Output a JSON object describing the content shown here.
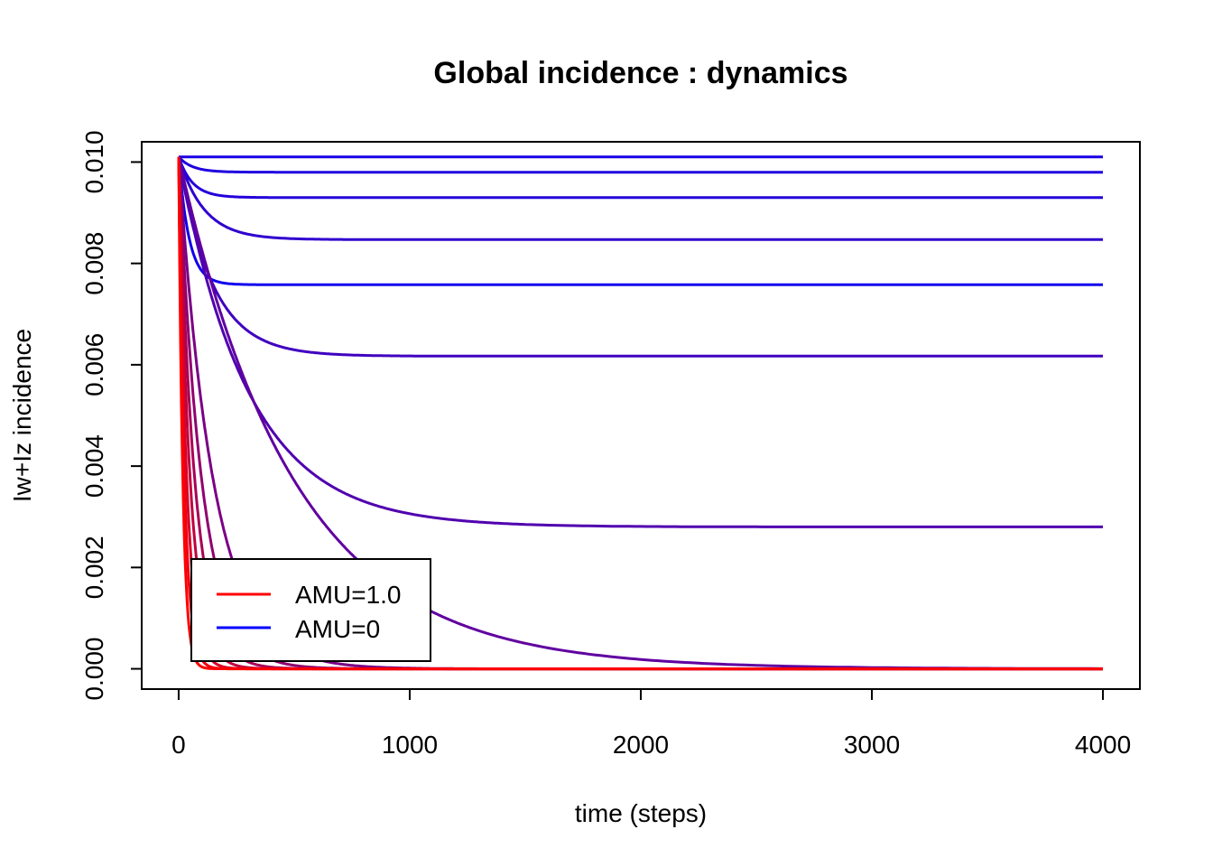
{
  "chart_data": {
    "type": "line",
    "title": "Global incidence : dynamics",
    "xlabel": "time (steps)",
    "ylabel": "Iw+Iz incidence",
    "xlim": [
      -160,
      4160
    ],
    "ylim": [
      -0.0004,
      0.0104
    ],
    "xticks": [
      0,
      1000,
      2000,
      3000,
      4000
    ],
    "xtick_labels": [
      "0",
      "1000",
      "2000",
      "3000",
      "4000"
    ],
    "yticks": [
      0.0,
      0.002,
      0.004,
      0.006,
      0.008,
      0.01
    ],
    "ytick_labels": [
      "0.000",
      "0.002",
      "0.004",
      "0.006",
      "0.008",
      "0.010"
    ],
    "grid": false,
    "legend": {
      "position": "bottom-left",
      "entries": [
        {
          "label": "AMU=1.0",
          "color": "#ff0000"
        },
        {
          "label": "AMU=0",
          "color": "#0000ff"
        }
      ]
    },
    "x_start": 0,
    "x_end": 4000,
    "y0": 0.0101,
    "series": [
      {
        "final": 0.0101,
        "tau": 20,
        "color": "#1a00e6"
      },
      {
        "final": 0.0098,
        "tau": 60,
        "color": "#1f00e0"
      },
      {
        "final": 0.0093,
        "tau": 60,
        "color": "#2400db"
      },
      {
        "final": 0.00847,
        "tau": 110,
        "color": "#3000cf"
      },
      {
        "final": 0.00758,
        "tau": 45,
        "color": "#1200ed"
      },
      {
        "final": 0.00617,
        "tau": 145,
        "color": "#4000bf"
      },
      {
        "final": 0.0028,
        "tau": 300,
        "color": "#5000af"
      },
      {
        "final": 0.0,
        "tau": 500,
        "color": "#6000a0"
      },
      {
        "final": 0.0,
        "tau": 150,
        "color": "#7a0085"
      },
      {
        "final": 0.0,
        "tau": 100,
        "color": "#90006f"
      },
      {
        "final": 0.0,
        "tau": 70,
        "color": "#a80057"
      },
      {
        "final": 0.0,
        "tau": 50,
        "color": "#c0003f"
      },
      {
        "final": 0.0,
        "tau": 35,
        "color": "#d80027"
      },
      {
        "final": 0.0,
        "tau": 25,
        "color": "#ee0011"
      },
      {
        "final": 0.0,
        "tau": 18,
        "color": "#ff0000"
      }
    ]
  }
}
